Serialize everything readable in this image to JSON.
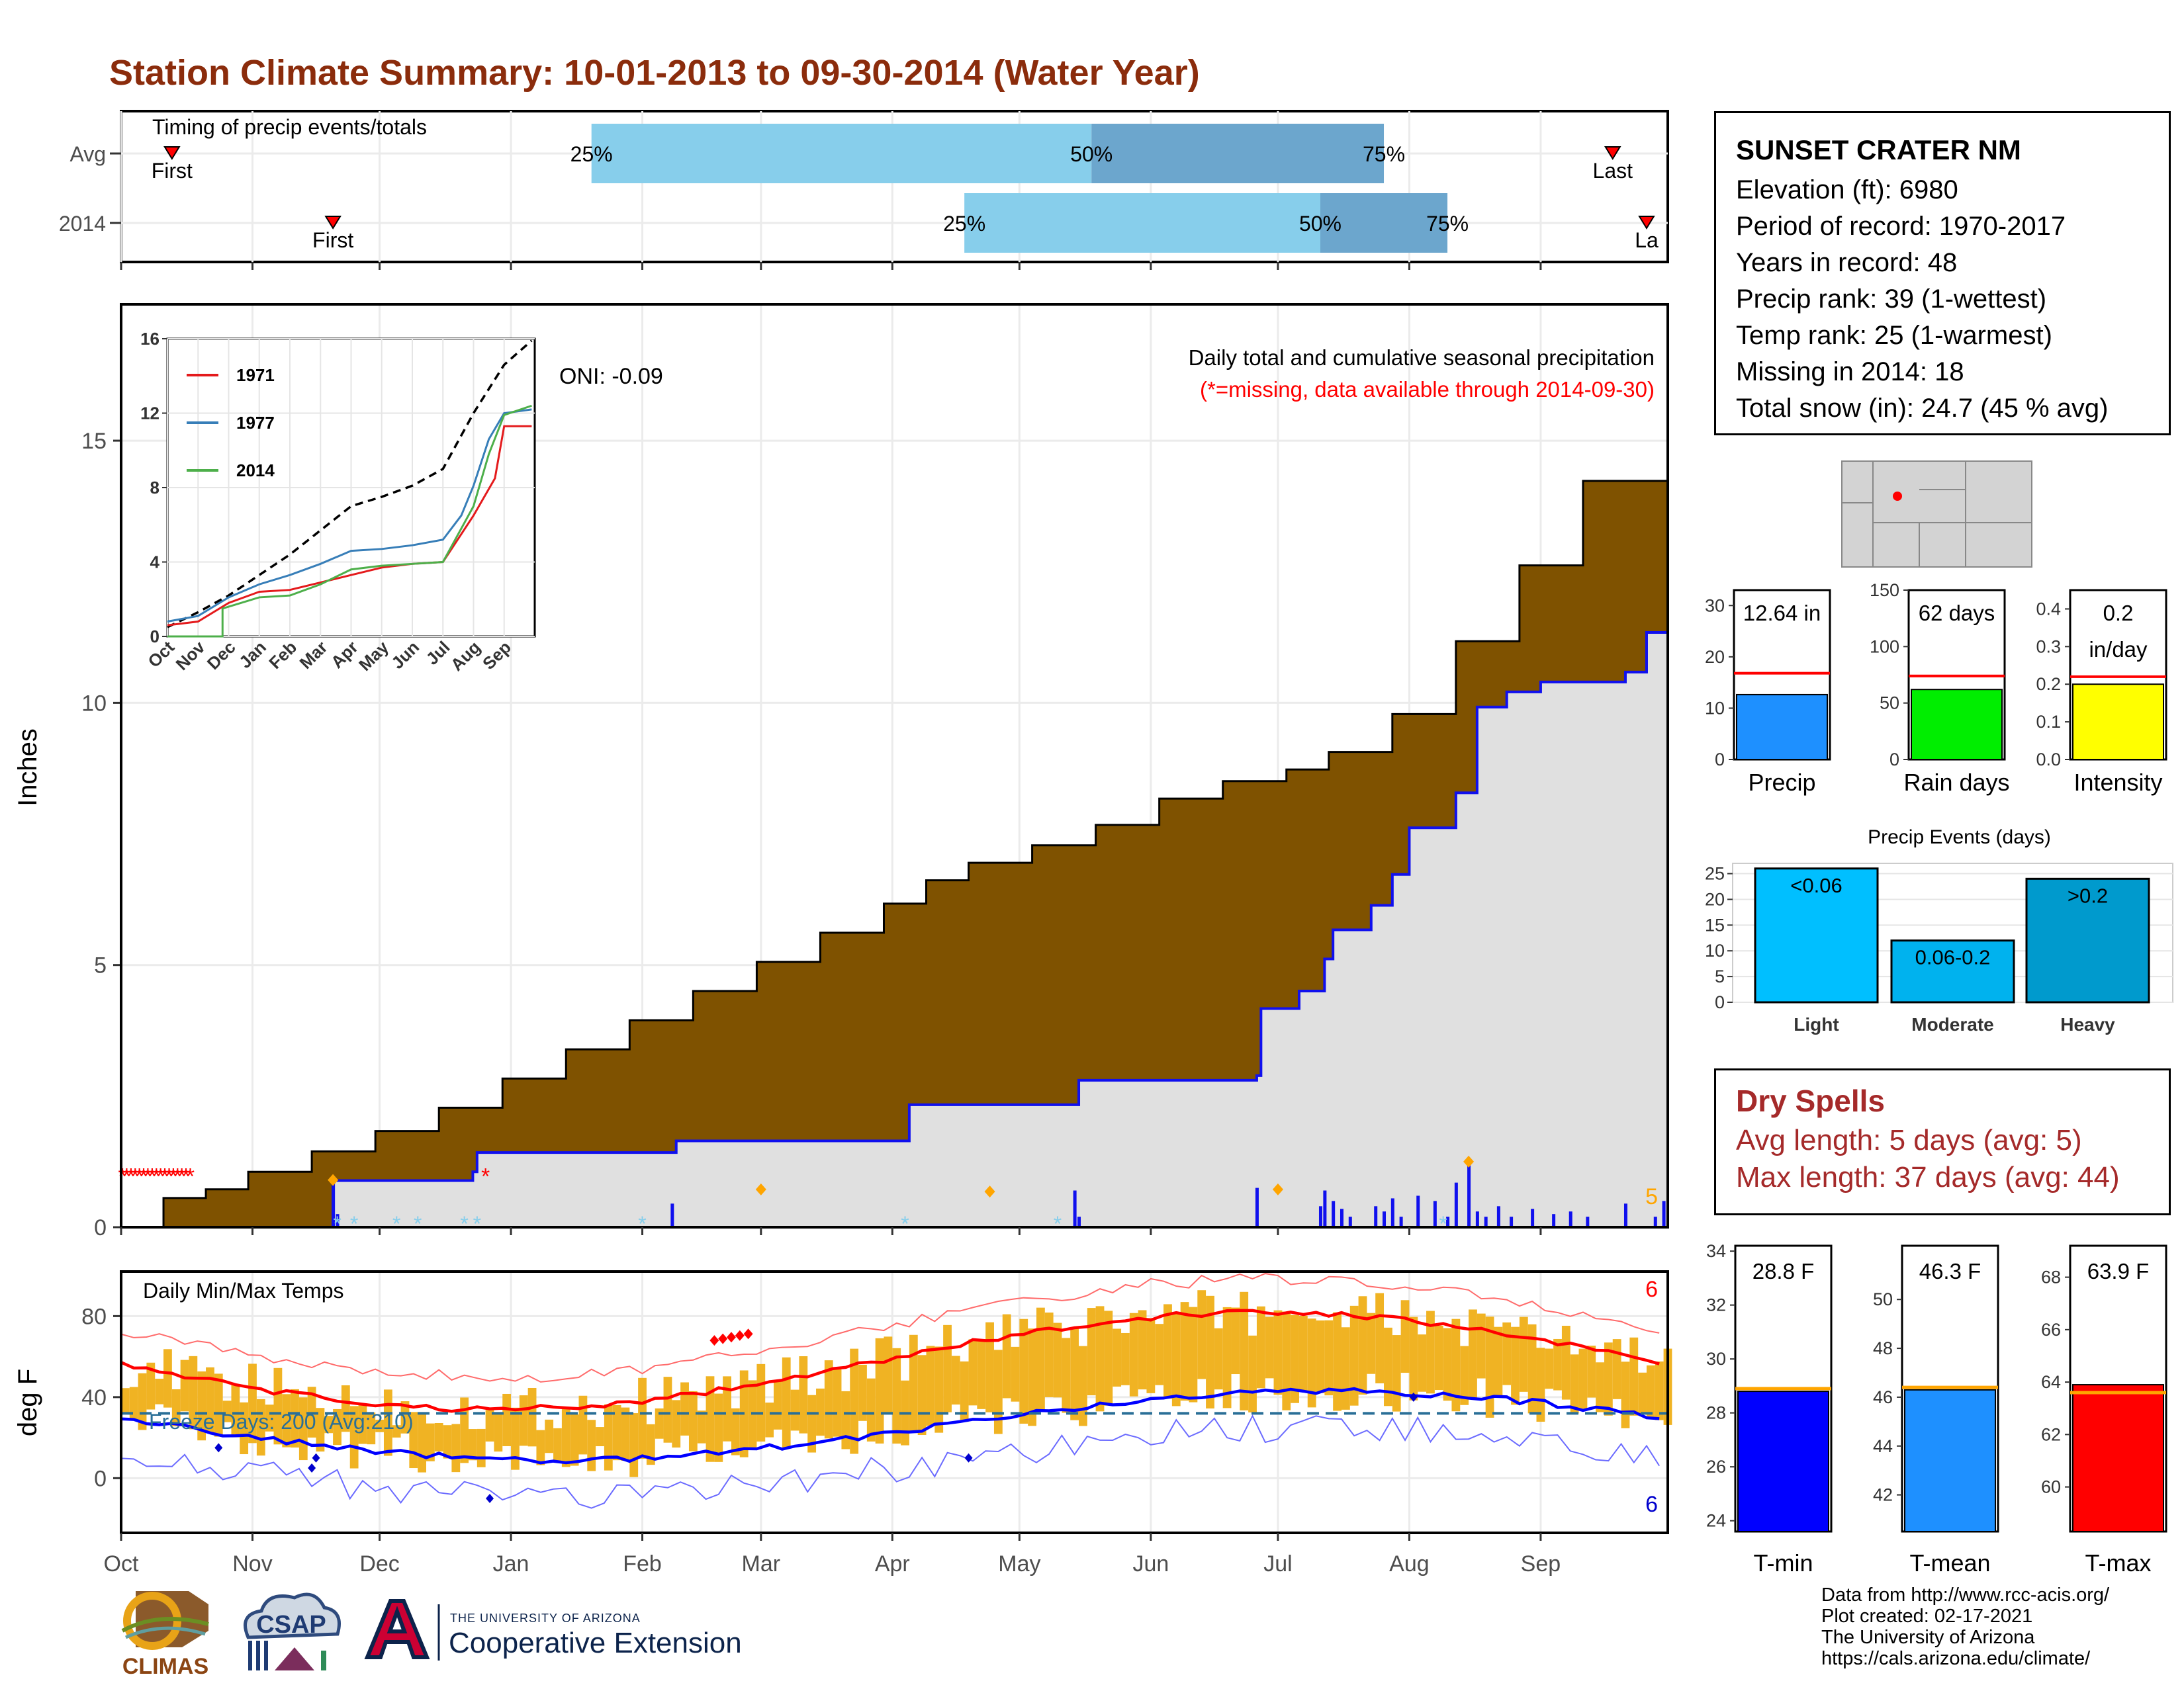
{
  "title": "Station Climate Summary: 10-01-2013 to 09-30-2014 (Water Year)",
  "colors": {
    "title": "#8b2c0c",
    "brown": "#7f5200",
    "cum_gray": "#e0e0e0",
    "blue_line": "#1010ee",
    "bar_light": "#87ceeb",
    "bar_mid": "#6ca6cd",
    "tmax_red": "#ff0000",
    "tmin_blue": "#0000ff",
    "temp_bar": "#f0b323",
    "freeze_line": "#2a6f97",
    "dry_red": "#a52a2a",
    "orange": "#ffa500"
  },
  "months": [
    "Oct",
    "Nov",
    "Dec",
    "Jan",
    "Feb",
    "Mar",
    "Apr",
    "May",
    "Jun",
    "Jul",
    "Aug",
    "Sep"
  ],
  "timing": {
    "title": "Timing of precip events/totals",
    "rows": [
      {
        "label": "Avg",
        "first_label": "First",
        "last_label": "Last",
        "first_day": 12,
        "last_day": 352,
        "p25": 111,
        "p50": 229,
        "p75": 298,
        "p25_label": "25%",
        "p50_label": "50%",
        "p75_label": "75%"
      },
      {
        "label": "2014",
        "first_label": "First",
        "last_label": "La",
        "first_day": 50,
        "last_day": 360,
        "p25": 199,
        "p50": 283,
        "p75": 313,
        "p25_label": "25%",
        "p50_label": "50%",
        "p75_label": "75%"
      }
    ]
  },
  "precip": {
    "ylabel": "Inches",
    "annotation": "Daily total and cumulative seasonal precipitation",
    "missing_note": "(*=missing, data available through 2014-09-30)",
    "oni": "ONI: -0.09",
    "yticks": [
      0,
      5,
      10,
      15
    ],
    "count_label": "5"
  },
  "inset": {
    "yticks": [
      0,
      4,
      8,
      12,
      16
    ],
    "months": [
      "Oct",
      "Nov",
      "Dec",
      "Jan",
      "Feb",
      "Mar",
      "Apr",
      "May",
      "Jun",
      "Jul",
      "Aug",
      "Sep"
    ],
    "legend": [
      "1971",
      "1977",
      "2014"
    ],
    "legend_colors": [
      "#e41a1c",
      "#377eb8",
      "#4daf4a"
    ]
  },
  "temps": {
    "label": "Daily Min/Max Temps",
    "freeze": "Freeze Days: 200 (Avg:210)",
    "ylabel": "deg F",
    "yticks": [
      0,
      40,
      80
    ],
    "count_hi": "6",
    "count_lo": "6"
  },
  "station": {
    "name": "SUNSET CRATER NM",
    "lines": [
      "Elevation (ft): 6980",
      "Period of record: 1970-2017",
      "Years in record: 48",
      "Precip rank: 39 (1-wettest)",
      "Temp rank: 25 (1-warmest)",
      "Missing in 2014: 18",
      "Total snow (in): 24.7 (45 % avg)"
    ]
  },
  "mini_bars": [
    {
      "name": "Precip",
      "value": 12.64,
      "avg": 16.8,
      "label": "12.64 in",
      "ymax": 33,
      "yticks": [
        0,
        10,
        20,
        30
      ],
      "color": "#1e90ff"
    },
    {
      "name": "Rain days",
      "value": 62,
      "avg": 74,
      "label": "62 days",
      "ymax": 150,
      "yticks": [
        0,
        50,
        100,
        150
      ],
      "color": "#00ee00"
    },
    {
      "name": "Intensity",
      "value": 0.2,
      "avg": 0.22,
      "label": "0.2\nin/day",
      "ymax": 0.45,
      "yticks": [
        0.0,
        0.1,
        0.2,
        0.3,
        0.4
      ],
      "color": "#ffff00"
    }
  ],
  "precip_events": {
    "title": "Precip Events (days)",
    "ymax": 27,
    "yticks": [
      0,
      5,
      10,
      15,
      20,
      25
    ],
    "bars": [
      {
        "category": "Light",
        "value": 26,
        "label": "<0.06",
        "color": "#00bfff"
      },
      {
        "category": "Moderate",
        "value": 12,
        "label": "0.06-0.2",
        "color": "#00b2ee"
      },
      {
        "category": "Heavy",
        "value": 24,
        "label": ">0.2",
        "color": "#009acd"
      }
    ]
  },
  "dry_spells": {
    "title": "Dry Spells",
    "avg": "Avg length: 5 days (avg: 5)",
    "max": "Max length: 37 days (avg: 44)"
  },
  "temp_bars": [
    {
      "name": "T-min",
      "value": 28.8,
      "avg": 28.9,
      "label": "28.8 F",
      "ymin": 23.6,
      "ymax": 34.2,
      "yticks": [
        24,
        26,
        28,
        30,
        32,
        34
      ],
      "color": "#0000ff"
    },
    {
      "name": "T-mean",
      "value": 46.3,
      "avg": 46.4,
      "label": "46.3 F",
      "ymin": 40.5,
      "ymax": 52.2,
      "yticks": [
        42,
        44,
        46,
        48,
        50
      ],
      "color": "#1e90ff"
    },
    {
      "name": "T-max",
      "value": 63.9,
      "avg": 63.6,
      "label": "63.9 F",
      "ymin": 58.3,
      "ymax": 69.2,
      "yticks": [
        60,
        62,
        64,
        66,
        68
      ],
      "color": "#ff0000"
    }
  ],
  "credits": [
    "Data from http://www.rcc-acis.org/",
    "Plot created: 02-17-2021",
    "The University of Arizona",
    "https://cals.arizona.edu/climate/"
  ],
  "logos": {
    "climas": "CLIMAS",
    "csap": "CSAP",
    "ua_small": "THE UNIVERSITY OF ARIZONA",
    "ua_big": "Cooperative Extension"
  }
}
